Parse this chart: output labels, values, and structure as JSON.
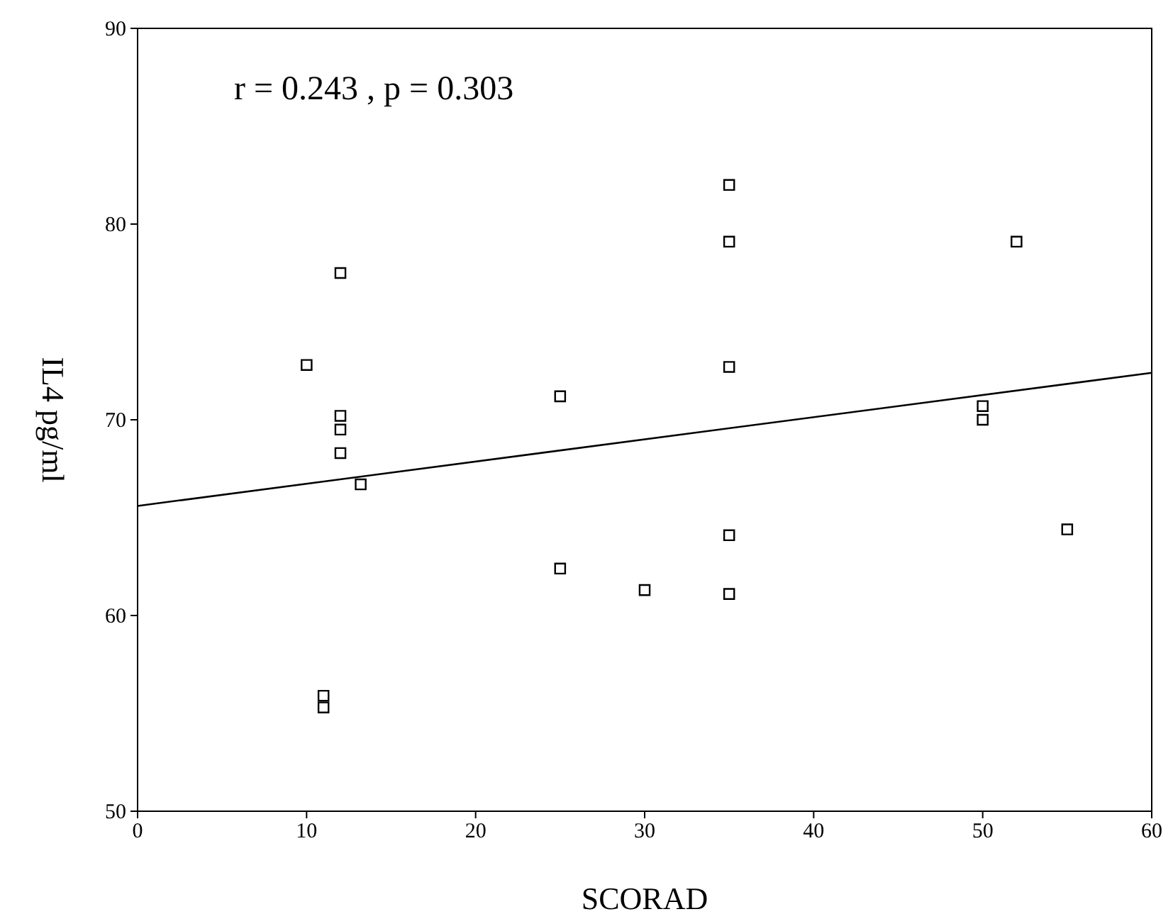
{
  "chart_data": {
    "type": "scatter",
    "xlabel": "SCORAD",
    "ylabel": "IL4 pg/ml",
    "annotations": [
      "r = 0.243  ,  p = 0.303"
    ],
    "xlim": [
      0,
      60
    ],
    "xticks": [
      0,
      10,
      20,
      30,
      40,
      50,
      60
    ],
    "ylim": [
      50,
      90
    ],
    "yticks": [
      50,
      60,
      70,
      80,
      90
    ],
    "grid": false,
    "series": [
      {
        "color": "#000000",
        "marker": "square",
        "x": [
          10,
          12,
          12,
          12,
          12,
          13.2,
          11,
          11,
          25,
          25,
          30,
          35,
          35,
          35,
          35,
          35,
          50,
          50,
          52,
          55
        ],
        "values": [
          72.8,
          77.5,
          70.2,
          69.5,
          68.3,
          66.7,
          55.9,
          55.3,
          71.2,
          62.4,
          61.3,
          82.0,
          79.1,
          72.7,
          64.1,
          61.1,
          70.7,
          70.0,
          79.1,
          64.4
        ]
      },
      {
        "type": "line",
        "color": "#000000",
        "x": [
          0,
          60
        ],
        "values": [
          65.6,
          72.4
        ]
      }
    ]
  }
}
